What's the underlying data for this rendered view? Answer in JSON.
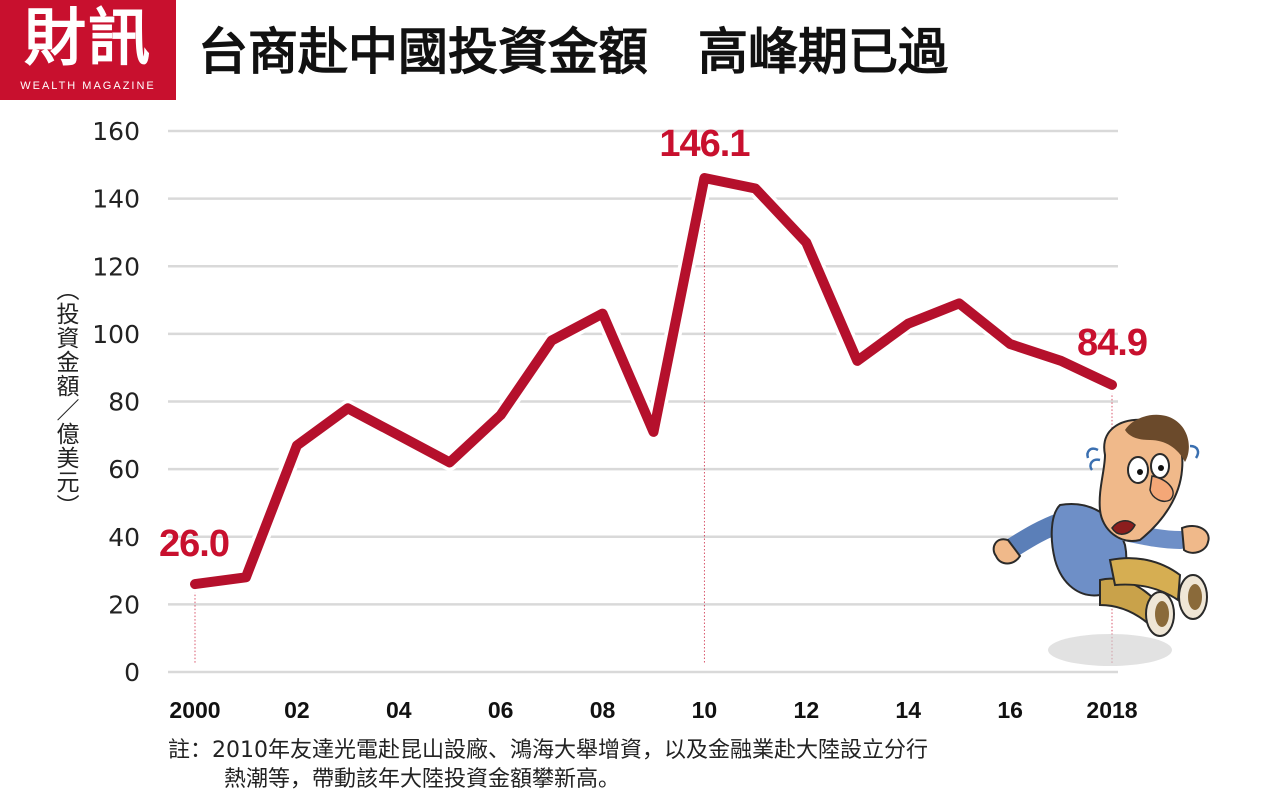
{
  "logo": {
    "cn": "財訊",
    "en": "WEALTH MAGAZINE"
  },
  "title": "台商赴中國投資金額　高峰期已過",
  "colors": {
    "line": "#b5102c",
    "label": "#c8102e",
    "grid": "#d9d9d9",
    "brand": "#c8102e"
  },
  "note": {
    "line1": "註：2010年友達光電赴昆山設廠、鴻海大舉增資，以及金融業赴大陸設立分行",
    "line2": "熱潮等，帶動該年大陸投資金額攀新高。"
  },
  "illustration": "panicked-falling-man",
  "chart_data": {
    "type": "line",
    "ylabel": "（投資金額／億美元）",
    "ylim": [
      0,
      160
    ],
    "yticks": [
      "0",
      "20",
      "40",
      "60",
      "80",
      "100",
      "120",
      "140",
      "160"
    ],
    "xticks": [
      "2000",
      "02",
      "04",
      "06",
      "08",
      "10",
      "12",
      "14",
      "16",
      "2018"
    ],
    "xlim": [
      2000,
      2018
    ],
    "grid": true,
    "x": [
      2000,
      2001,
      2002,
      2003,
      2004,
      2005,
      2006,
      2007,
      2008,
      2009,
      2010,
      2011,
      2012,
      2013,
      2014,
      2015,
      2016,
      2017,
      2018
    ],
    "values": [
      26.0,
      28,
      67,
      78,
      70,
      62,
      76,
      98,
      106,
      71,
      146.1,
      143,
      127,
      92,
      103,
      109,
      97,
      92,
      84.9
    ],
    "annotations": [
      {
        "x": 2000,
        "label": "26.0"
      },
      {
        "x": 2010,
        "label": "146.1"
      },
      {
        "x": 2018,
        "label": "84.9"
      }
    ]
  }
}
